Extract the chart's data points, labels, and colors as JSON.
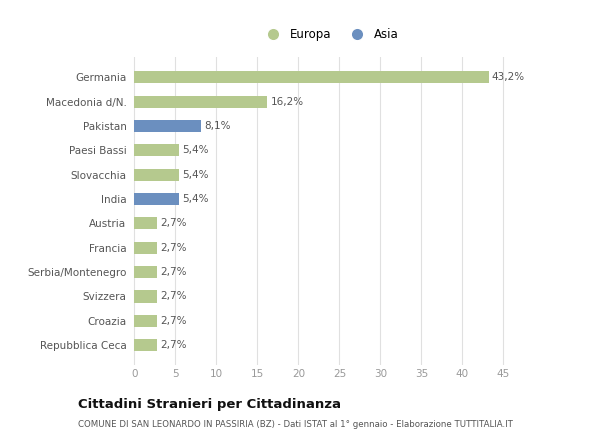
{
  "categories": [
    "Repubblica Ceca",
    "Croazia",
    "Svizzera",
    "Serbia/Montenegro",
    "Francia",
    "Austria",
    "India",
    "Slovacchia",
    "Paesi Bassi",
    "Pakistan",
    "Macedonia d/N.",
    "Germania"
  ],
  "values": [
    2.7,
    2.7,
    2.7,
    2.7,
    2.7,
    2.7,
    5.4,
    5.4,
    5.4,
    8.1,
    16.2,
    43.2
  ],
  "colors": [
    "#b5c98e",
    "#b5c98e",
    "#b5c98e",
    "#b5c98e",
    "#b5c98e",
    "#b5c98e",
    "#6b8fbf",
    "#b5c98e",
    "#b5c98e",
    "#6b8fbf",
    "#b5c98e",
    "#b5c98e"
  ],
  "labels": [
    "2,7%",
    "2,7%",
    "2,7%",
    "2,7%",
    "2,7%",
    "2,7%",
    "5,4%",
    "5,4%",
    "5,4%",
    "8,1%",
    "16,2%",
    "43,2%"
  ],
  "xlabel_ticks": [
    0,
    5,
    10,
    15,
    20,
    25,
    30,
    35,
    40,
    45
  ],
  "xlim": [
    -0.3,
    48
  ],
  "legend_europa_color": "#b5c98e",
  "legend_asia_color": "#6b8fbf",
  "title": "Cittadini Stranieri per Cittadinanza",
  "subtitle": "COMUNE DI SAN LEONARDO IN PASSIRIA (BZ) - Dati ISTAT al 1° gennaio - Elaborazione TUTTITALIA.IT",
  "bg_color": "#ffffff",
  "plot_bg_color": "#ffffff",
  "grid_color": "#e0e0e0",
  "label_color": "#555555",
  "tick_color": "#999999"
}
